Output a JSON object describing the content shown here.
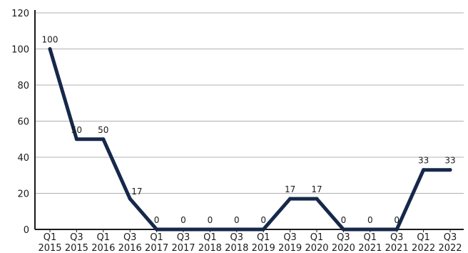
{
  "chart_data": {
    "type": "line",
    "title": "",
    "xlabel": "",
    "ylabel": "",
    "categories": [
      [
        "Q1",
        "2015"
      ],
      [
        "Q3",
        "2015"
      ],
      [
        "Q1",
        "2016"
      ],
      [
        "Q3",
        "2016"
      ],
      [
        "Q1",
        "2017"
      ],
      [
        "Q3",
        "2017"
      ],
      [
        "Q1",
        "2018"
      ],
      [
        "Q3",
        "2018"
      ],
      [
        "Q1",
        "2019"
      ],
      [
        "Q3",
        "2019"
      ],
      [
        "Q1",
        "2020"
      ],
      [
        "Q3",
        "2020"
      ],
      [
        "Q1",
        "2021"
      ],
      [
        "Q3",
        "2021"
      ],
      [
        "Q1",
        "2022"
      ],
      [
        "Q3",
        "2022"
      ]
    ],
    "series": [
      {
        "values": [
          100,
          50,
          50,
          17,
          0,
          0,
          0,
          0,
          0,
          17,
          17,
          0,
          0,
          0,
          33,
          33
        ]
      }
    ],
    "data_labels": true,
    "ylim": [
      0,
      120
    ],
    "yticks": [
      0,
      20,
      40,
      60,
      80,
      100,
      120
    ],
    "grid": "horizontal",
    "legend": "none",
    "colors": {
      "line": "#16284a",
      "grid": "#b0b0b0",
      "axis": "#1a1a1a",
      "text": "#1a1a1a"
    }
  }
}
